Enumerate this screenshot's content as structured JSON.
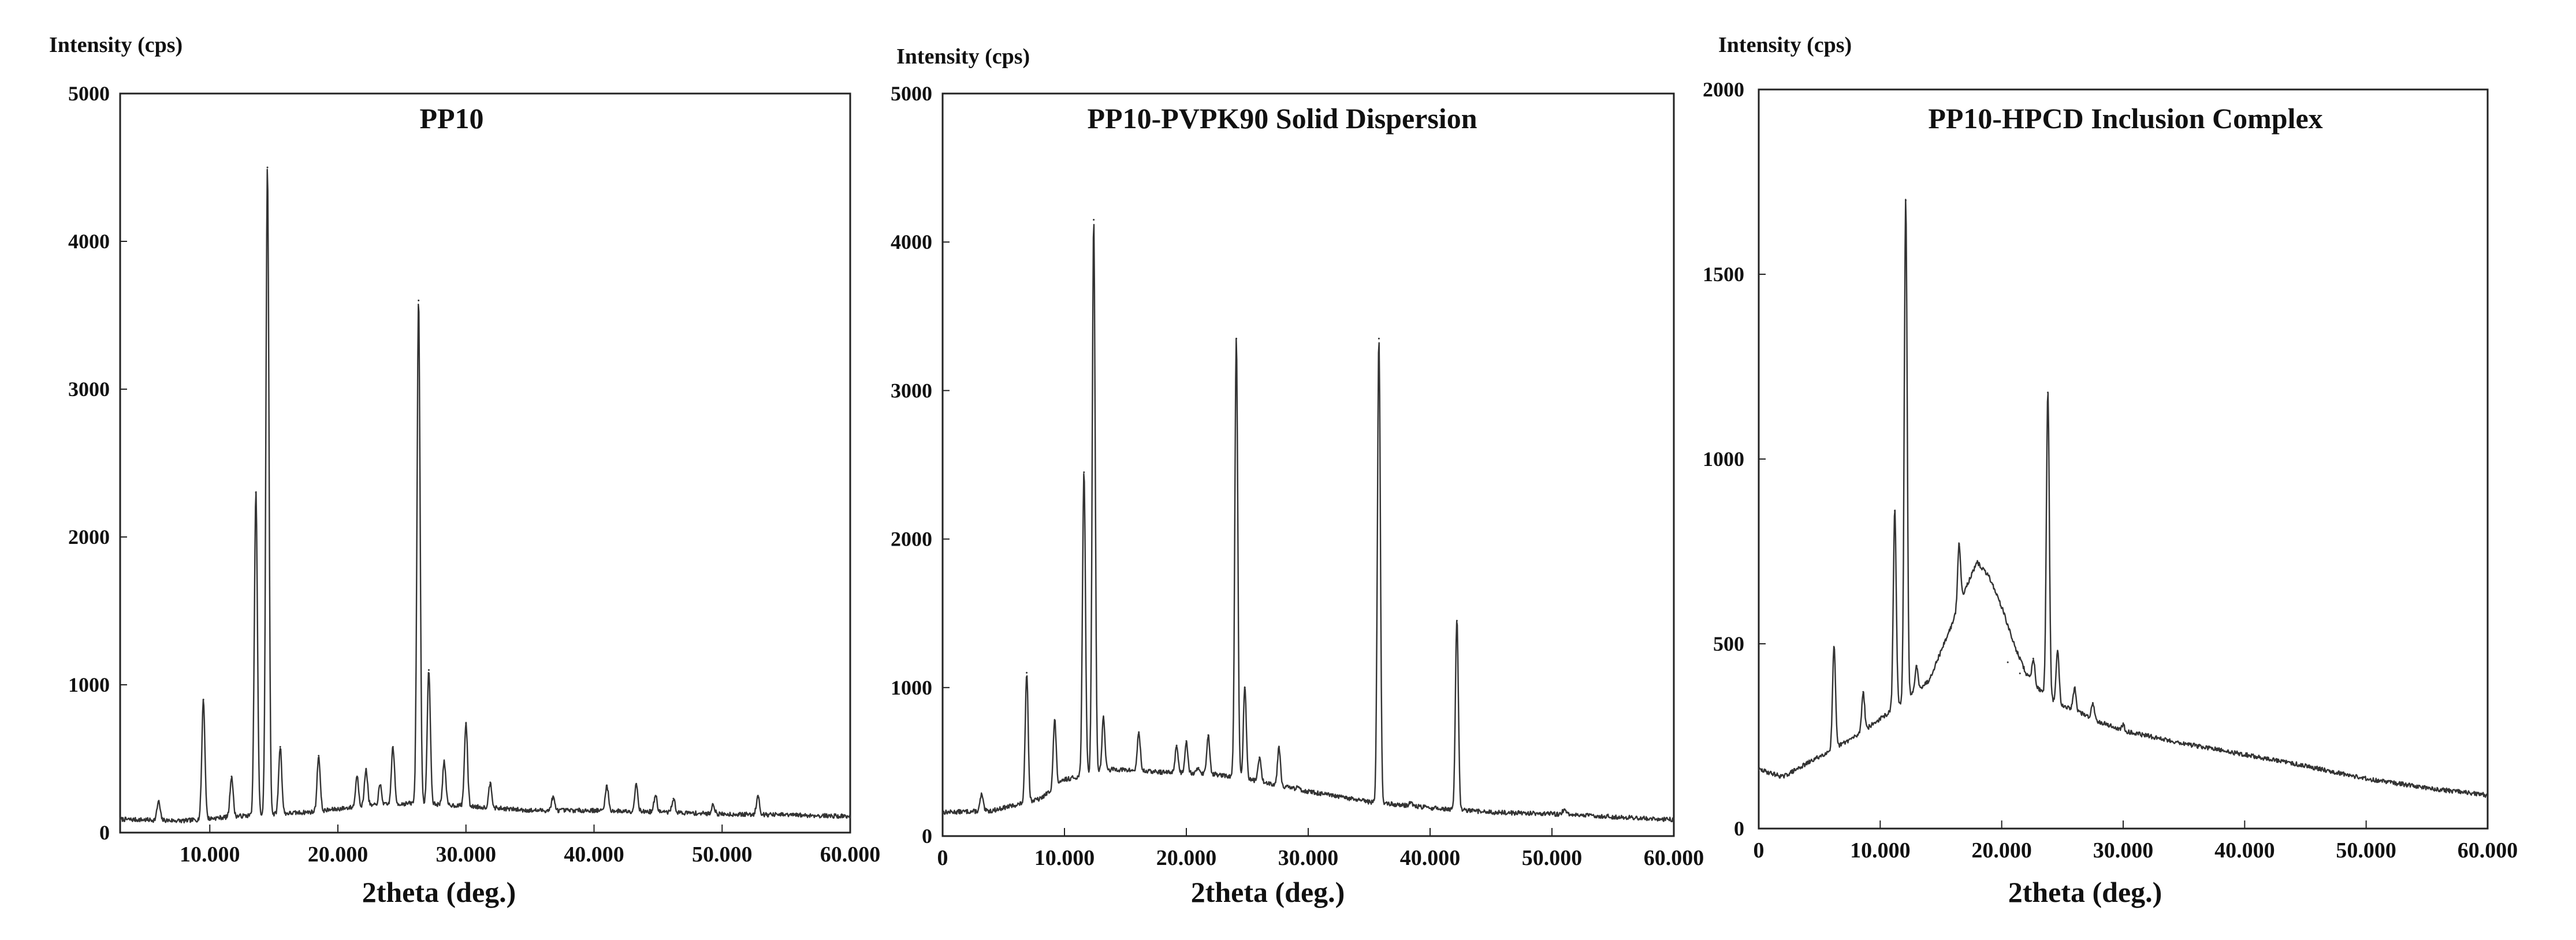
{
  "chart_data": [
    {
      "type": "line",
      "title": "PP10",
      "ylabel": "Intensity (cps)",
      "xlabel": "2theta (deg.)",
      "xlim": [
        3,
        60
      ],
      "ylim": [
        0,
        5000
      ],
      "x_ticks": [
        10,
        20,
        30,
        40,
        50,
        60
      ],
      "x_tick_labels": [
        "10.000",
        "20.000",
        "30.000",
        "40.000",
        "50.000",
        "60.000"
      ],
      "y_ticks": [
        0,
        1000,
        2000,
        3000,
        4000,
        5000
      ],
      "y_tick_labels": [
        "0",
        "1000",
        "2000",
        "3000",
        "4000",
        "5000"
      ],
      "baseline": [
        [
          3,
          90
        ],
        [
          8,
          80
        ],
        [
          12,
          110
        ],
        [
          18,
          140
        ],
        [
          22,
          180
        ],
        [
          26,
          200
        ],
        [
          30,
          180
        ],
        [
          35,
          150
        ],
        [
          40,
          150
        ],
        [
          45,
          140
        ],
        [
          50,
          125
        ],
        [
          55,
          120
        ],
        [
          60,
          110
        ]
      ],
      "peaks": [
        {
          "x": 6.0,
          "y": 210
        },
        {
          "x": 9.5,
          "y": 900
        },
        {
          "x": 11.7,
          "y": 380
        },
        {
          "x": 13.6,
          "y": 2300
        },
        {
          "x": 14.5,
          "y": 4500
        },
        {
          "x": 15.5,
          "y": 580
        },
        {
          "x": 18.5,
          "y": 520
        },
        {
          "x": 21.5,
          "y": 380
        },
        {
          "x": 22.2,
          "y": 430
        },
        {
          "x": 23.3,
          "y": 320
        },
        {
          "x": 24.3,
          "y": 580
        },
        {
          "x": 26.3,
          "y": 3600
        },
        {
          "x": 27.1,
          "y": 1100
        },
        {
          "x": 28.3,
          "y": 480
        },
        {
          "x": 30.0,
          "y": 740
        },
        {
          "x": 31.9,
          "y": 340
        },
        {
          "x": 36.8,
          "y": 240
        },
        {
          "x": 41.0,
          "y": 320
        },
        {
          "x": 43.3,
          "y": 330
        },
        {
          "x": 44.8,
          "y": 250
        },
        {
          "x": 46.2,
          "y": 230
        },
        {
          "x": 49.3,
          "y": 190
        },
        {
          "x": 52.8,
          "y": 250
        }
      ]
    },
    {
      "type": "line",
      "title": "PP10-PVPK90 Solid Dispersion",
      "ylabel": "Intensity (cps)",
      "xlabel": "2theta (deg.)",
      "xlim": [
        0,
        60
      ],
      "ylim": [
        0,
        5000
      ],
      "x_ticks": [
        0,
        10,
        20,
        30,
        40,
        50,
        60
      ],
      "x_tick_labels": [
        "0",
        "10.000",
        "20.000",
        "30.000",
        "40.000",
        "50.000",
        "60.000"
      ],
      "y_ticks": [
        0,
        1000,
        2000,
        3000,
        4000,
        5000
      ],
      "y_tick_labels": [
        "0",
        "1000",
        "2000",
        "3000",
        "4000",
        "5000"
      ],
      "baseline": [
        [
          0,
          160
        ],
        [
          4,
          170
        ],
        [
          8,
          250
        ],
        [
          10,
          380
        ],
        [
          14,
          450
        ],
        [
          18,
          430
        ],
        [
          22,
          420
        ],
        [
          26,
          370
        ],
        [
          30,
          300
        ],
        [
          35,
          230
        ],
        [
          40,
          190
        ],
        [
          45,
          160
        ],
        [
          50,
          150
        ],
        [
          55,
          130
        ],
        [
          60,
          110
        ]
      ],
      "peaks": [
        {
          "x": 3.2,
          "y": 280
        },
        {
          "x": 6.9,
          "y": 1100
        },
        {
          "x": 9.2,
          "y": 780
        },
        {
          "x": 11.6,
          "y": 2450
        },
        {
          "x": 12.4,
          "y": 4150
        },
        {
          "x": 13.2,
          "y": 800
        },
        {
          "x": 16.1,
          "y": 700
        },
        {
          "x": 19.2,
          "y": 610
        },
        {
          "x": 20.0,
          "y": 640
        },
        {
          "x": 21.0,
          "y": 460
        },
        {
          "x": 21.8,
          "y": 680
        },
        {
          "x": 24.1,
          "y": 3350
        },
        {
          "x": 24.8,
          "y": 1000
        },
        {
          "x": 26.0,
          "y": 530
        },
        {
          "x": 27.6,
          "y": 600
        },
        {
          "x": 29.2,
          "y": 330
        },
        {
          "x": 35.8,
          "y": 3350
        },
        {
          "x": 38.4,
          "y": 230
        },
        {
          "x": 42.2,
          "y": 1450
        },
        {
          "x": 51.0,
          "y": 180
        }
      ]
    },
    {
      "type": "line",
      "title": "PP10-HPCD Inclusion Complex",
      "ylabel": "Intensity (cps)",
      "xlabel": "2theta (deg.)",
      "xlim": [
        0,
        60
      ],
      "ylim": [
        0,
        2000
      ],
      "x_ticks": [
        0,
        10,
        20,
        30,
        40,
        50,
        60
      ],
      "x_tick_labels": [
        "0",
        "10.000",
        "20.000",
        "30.000",
        "40.000",
        "50.000",
        "60.000"
      ],
      "y_ticks": [
        0,
        500,
        1000,
        1500,
        2000
      ],
      "y_tick_labels": [
        "0",
        "500",
        "1000",
        "1500",
        "2000"
      ],
      "baseline": [
        [
          0,
          160
        ],
        [
          2,
          140
        ],
        [
          5,
          195
        ],
        [
          8,
          250
        ],
        [
          11,
          320
        ],
        [
          14,
          400
        ],
        [
          16,
          560
        ],
        [
          17,
          650
        ],
        [
          18,
          720
        ],
        [
          19,
          680
        ],
        [
          20,
          600
        ],
        [
          21,
          500
        ],
        [
          22,
          420
        ],
        [
          23,
          380
        ],
        [
          24,
          350
        ],
        [
          26,
          320
        ],
        [
          28,
          290
        ],
        [
          30,
          265
        ],
        [
          35,
          230
        ],
        [
          40,
          200
        ],
        [
          45,
          170
        ],
        [
          50,
          135
        ],
        [
          55,
          110
        ],
        [
          60,
          90
        ]
      ],
      "peaks": [
        {
          "x": 6.2,
          "y": 490
        },
        {
          "x": 8.6,
          "y": 370
        },
        {
          "x": 11.2,
          "y": 860
        },
        {
          "x": 12.1,
          "y": 1700
        },
        {
          "x": 13.0,
          "y": 440
        },
        {
          "x": 16.5,
          "y": 770
        },
        {
          "x": 20.5,
          "y": 450
        },
        {
          "x": 21.5,
          "y": 420
        },
        {
          "x": 22.6,
          "y": 460
        },
        {
          "x": 23.8,
          "y": 1180
        },
        {
          "x": 24.6,
          "y": 480
        },
        {
          "x": 26.0,
          "y": 380
        },
        {
          "x": 27.5,
          "y": 340
        },
        {
          "x": 30.0,
          "y": 280
        },
        {
          "x": 41.0,
          "y": 190
        }
      ]
    }
  ]
}
